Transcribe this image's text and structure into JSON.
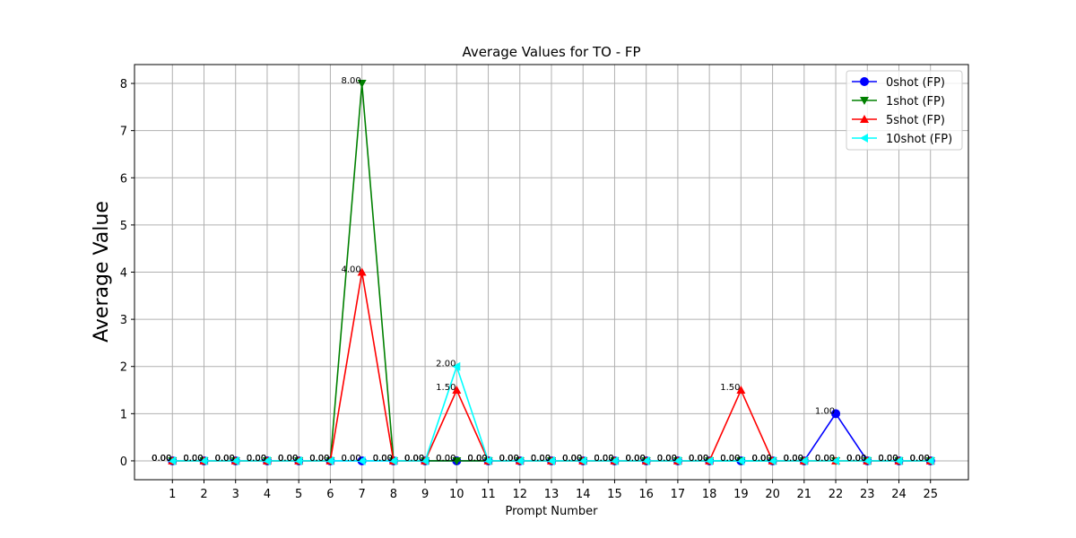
{
  "chart_data": {
    "type": "line",
    "title": "Average Values for TO - FP",
    "xlabel": "Prompt Number",
    "ylabel": "Average Value",
    "x": [
      1,
      2,
      3,
      4,
      5,
      6,
      7,
      8,
      9,
      10,
      11,
      12,
      13,
      14,
      15,
      16,
      17,
      18,
      19,
      20,
      21,
      22,
      23,
      24,
      25
    ],
    "x_tick_labels": [
      "1",
      "2",
      "3",
      "4",
      "5",
      "6",
      "7",
      "8",
      "9",
      "10",
      "11",
      "12",
      "13",
      "14",
      "15",
      "16",
      "17",
      "18",
      "19",
      "20",
      "21",
      "22",
      "23",
      "24",
      "25"
    ],
    "y_ticks": [
      0,
      1,
      2,
      3,
      4,
      5,
      6,
      7,
      8
    ],
    "y_tick_labels": [
      "0",
      "1",
      "2",
      "3",
      "4",
      "5",
      "6",
      "7",
      "8"
    ],
    "xlim": [
      -0.2,
      26.2
    ],
    "ylim": [
      -0.4,
      8.4
    ],
    "grid": true,
    "legend_position": "top-right",
    "series": [
      {
        "name": "0shot (FP)",
        "color": "#0000ff",
        "marker": "circle",
        "values": [
          0,
          0,
          0,
          0,
          0,
          0,
          0,
          0,
          0,
          0,
          0,
          0,
          0,
          0,
          0,
          0,
          0,
          0,
          0,
          0,
          0,
          1,
          0,
          0,
          0
        ],
        "labels": [
          "0.00",
          "0.00",
          "0.00",
          "0.00",
          "0.00",
          "0.00",
          "0.00",
          "0.00",
          "0.00",
          "0.00",
          "0.00",
          "0.00",
          "0.00",
          "0.00",
          "0.00",
          "0.00",
          "0.00",
          "0.00",
          "0.00",
          "0.00",
          "0.00",
          "1.00",
          "0.00",
          "0.00",
          "0.00"
        ]
      },
      {
        "name": "1shot (FP)",
        "color": "#008000",
        "marker": "triangle-down",
        "values": [
          0,
          0,
          0,
          0,
          0,
          0,
          8,
          0,
          0,
          0,
          0,
          0,
          0,
          0,
          0,
          0,
          0,
          0,
          0,
          0,
          0,
          0,
          0,
          0,
          0
        ],
        "labels": [
          "0.00",
          "0.00",
          "0.00",
          "0.00",
          "0.00",
          "0.00",
          "8.00",
          "0.00",
          "0.00",
          "0.00",
          "0.00",
          "0.00",
          "0.00",
          "0.00",
          "0.00",
          "0.00",
          "0.00",
          "0.00",
          "0.00",
          "0.00",
          "0.00",
          "0.00",
          "0.00",
          "0.00",
          "0.00"
        ]
      },
      {
        "name": "5shot (FP)",
        "color": "#ff0000",
        "marker": "triangle-up",
        "values": [
          0,
          0,
          0,
          0,
          0,
          0,
          4,
          0,
          0,
          1.5,
          0,
          0,
          0,
          0,
          0,
          0,
          0,
          0,
          1.5,
          0,
          0,
          0,
          0,
          0,
          0
        ],
        "labels": [
          "0.00",
          "0.00",
          "0.00",
          "0.00",
          "0.00",
          "0.00",
          "4.00",
          "0.00",
          "0.00",
          "1.50",
          "0.00",
          "0.00",
          "0.00",
          "0.00",
          "0.00",
          "0.00",
          "0.00",
          "0.00",
          "1.50",
          "0.00",
          "0.00",
          "0.00",
          "0.00",
          "0.00",
          "0.00"
        ]
      },
      {
        "name": "10shot (FP)",
        "color": "#00ffff",
        "marker": "triangle-left",
        "values": [
          0,
          0,
          0,
          0,
          0,
          0,
          0,
          0,
          0,
          2,
          0,
          0,
          0,
          0,
          0,
          0,
          0,
          0,
          0,
          0,
          0,
          0,
          0,
          0,
          0
        ],
        "labels": [
          "0.00",
          "0.00",
          "0.00",
          "0.00",
          "0.00",
          "0.00",
          "0.00",
          "0.00",
          "0.00",
          "2.00",
          "0.00",
          "0.00",
          "0.00",
          "0.00",
          "0.00",
          "0.00",
          "0.00",
          "0.00",
          "0.00",
          "0.00",
          "0.00",
          "0.00",
          "0.00",
          "0.00",
          "0.00"
        ]
      }
    ]
  }
}
